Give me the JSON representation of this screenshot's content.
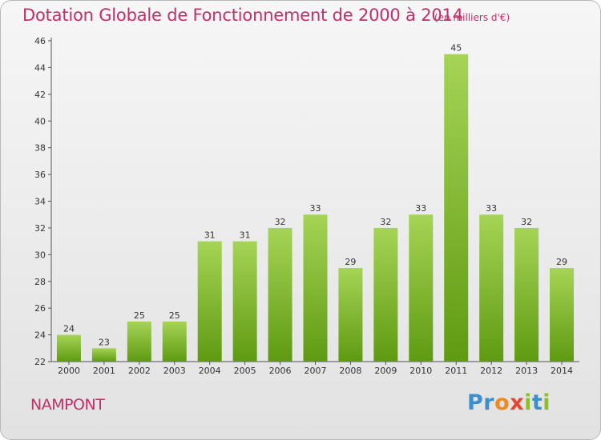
{
  "title": "Dotation Globale de Fonctionnement de 2000 à 2014",
  "unit_note": "(en milliers d'€)",
  "commune": "NAMPONT",
  "brand": {
    "letters": [
      "P",
      "r",
      "o",
      "x",
      "i",
      "t",
      "i"
    ],
    "colors": [
      "#3a8fcf",
      "#3a8fcf",
      "#f08a1c",
      "#e8452c",
      "#8cbf2a",
      "#3a8fcf",
      "#8cbf2a"
    ]
  },
  "colors": {
    "title": "#c0306a",
    "bar_top": "#a6d456",
    "bar_bottom": "#5f9a12"
  },
  "chart_data": {
    "type": "bar",
    "categories": [
      "2000",
      "2001",
      "2002",
      "2003",
      "2004",
      "2005",
      "2006",
      "2007",
      "2008",
      "2009",
      "2010",
      "2011",
      "2012",
      "2013",
      "2014"
    ],
    "values": [
      24,
      23,
      25,
      25,
      31,
      31,
      32,
      33,
      29,
      32,
      33,
      45,
      33,
      32,
      29
    ],
    "title": "Dotation Globale de Fonctionnement de 2000 à 2014",
    "xlabel": "",
    "ylabel": "",
    "ylim": [
      22,
      46
    ],
    "yticks": [
      22,
      24,
      26,
      28,
      30,
      32,
      34,
      36,
      38,
      40,
      42,
      44,
      46
    ],
    "grid": false,
    "data_labels": true
  }
}
